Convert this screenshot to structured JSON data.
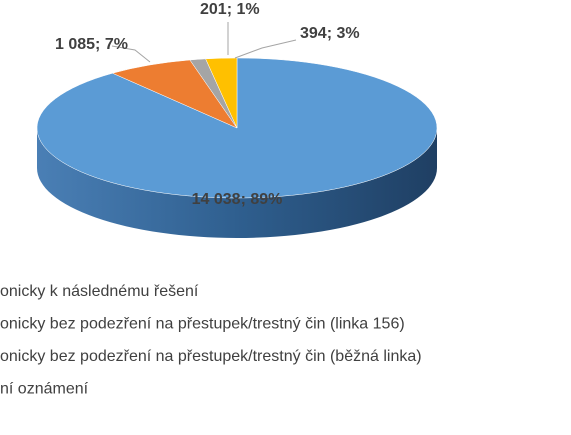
{
  "chart_data": {
    "type": "pie",
    "categories": [
      "onicky k následnému řešení",
      "onicky bez podezření na přestupek/trestný čin (linka 156)",
      "onicky bez podezření na přestupek/trestný čin (běžná linka)",
      "ní oznámení"
    ],
    "values": [
      14038,
      1085,
      201,
      394
    ],
    "value_labels": [
      "14 038; 89%",
      "1 085; 7%",
      "201; 1%",
      "394; 3%"
    ],
    "colors": [
      "#5b9bd5",
      "#ed7d31",
      "#a5a5a5",
      "#ffc000"
    ],
    "legend": "bottom"
  }
}
